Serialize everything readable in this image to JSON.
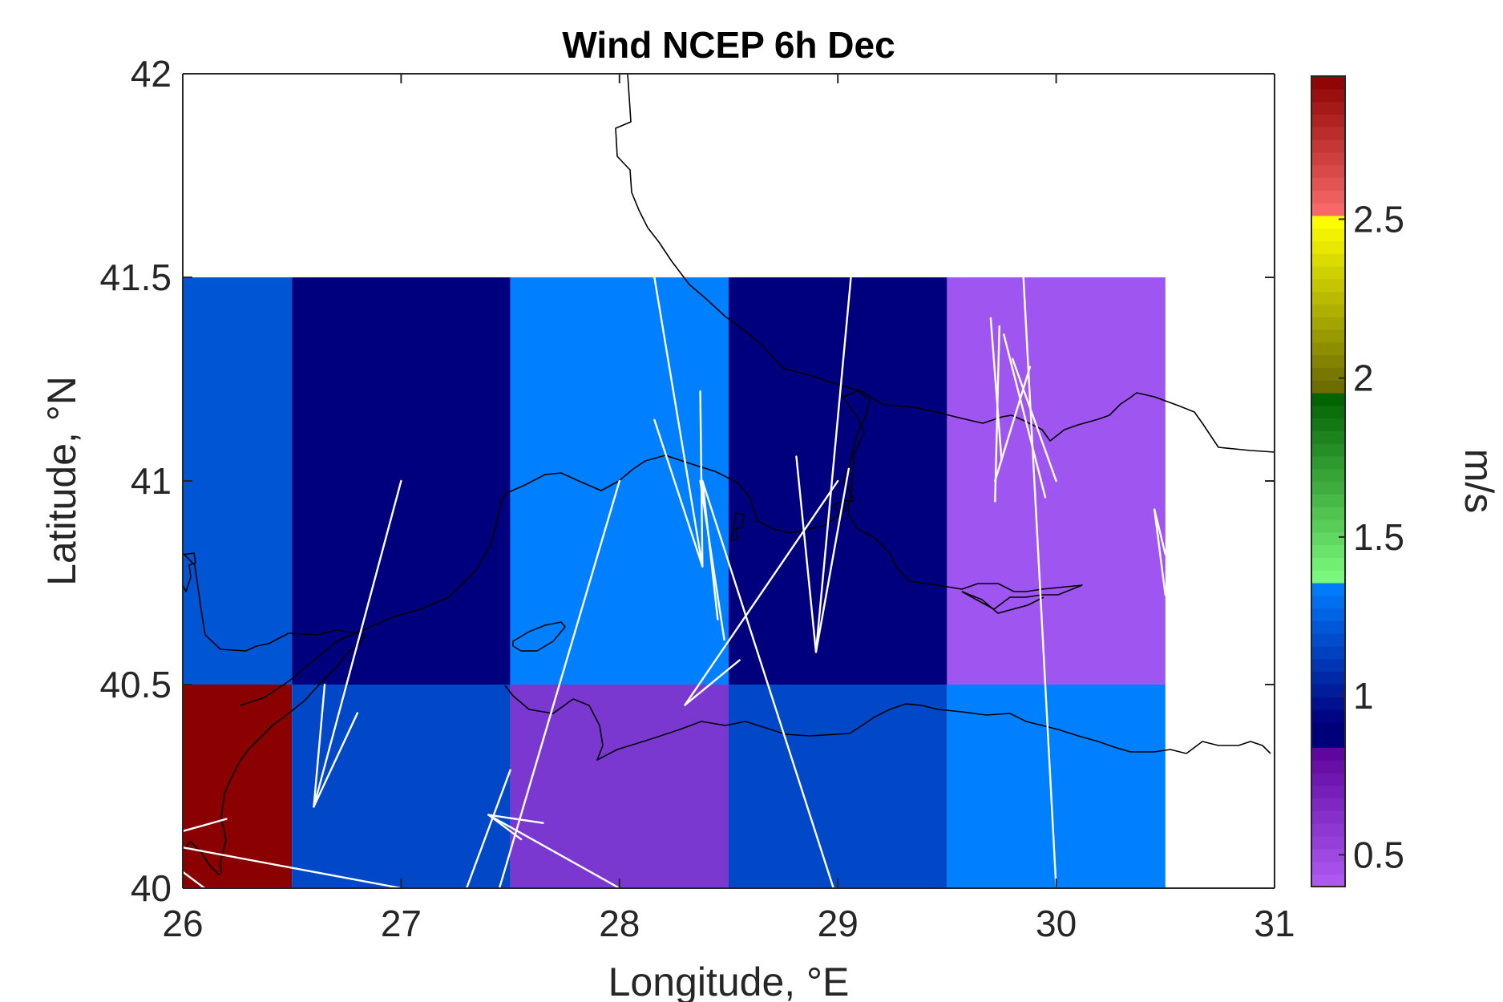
{
  "chart_data": {
    "type": "heatmap",
    "title": "Wind NCEP 6h Dec",
    "xlabel": "Longitude, °E",
    "ylabel": "Latitude, °N",
    "xlim": [
      26,
      31
    ],
    "ylim": [
      40,
      42
    ],
    "xticks": [
      26,
      27,
      28,
      29,
      30,
      31
    ],
    "xtick_labels": [
      "26",
      "27",
      "28",
      "29",
      "30",
      "31"
    ],
    "yticks": [
      40,
      40.5,
      41,
      41.5,
      42
    ],
    "ytick_labels": [
      "40",
      "40.5",
      "41",
      "41.5",
      "42"
    ],
    "grid": false,
    "colorbar": {
      "label": "m/s",
      "range": [
        0.4,
        2.95
      ],
      "ticks": [
        0.5,
        1,
        1.5,
        2,
        2.5
      ],
      "tick_labels": [
        "0.5",
        "1",
        "1.5",
        "2",
        "2.5"
      ],
      "stops": [
        {
          "from": 0.4,
          "to": 0.85,
          "c0": "#b05cf5",
          "c1": "#5a009a"
        },
        {
          "from": 0.85,
          "to": 0.92,
          "c0": "#00007a",
          "c1": "#00007a"
        },
        {
          "from": 0.92,
          "to": 1.35,
          "c0": "#00007f",
          "c1": "#0080ff"
        },
        {
          "from": 1.35,
          "to": 1.95,
          "c0": "#80ff80",
          "c1": "#006000"
        },
        {
          "from": 1.95,
          "to": 2.5,
          "c0": "#666600",
          "c1": "#ffff00"
        },
        {
          "from": 2.5,
          "to": 2.95,
          "c0": "#ff7070",
          "c1": "#8b0000"
        }
      ]
    },
    "cells": [
      {
        "lon": [
          26,
          26.5
        ],
        "lat": [
          40.5,
          41.5
        ],
        "color": "#0055d4"
      },
      {
        "lon": [
          26.5,
          27.5
        ],
        "lat": [
          40.5,
          41.5
        ],
        "color": "#00007f"
      },
      {
        "lon": [
          27.5,
          28.5
        ],
        "lat": [
          40.5,
          41.5
        ],
        "color": "#0080ff"
      },
      {
        "lon": [
          28.5,
          29.5
        ],
        "lat": [
          40.5,
          41.5
        ],
        "color": "#00007f"
      },
      {
        "lon": [
          29.5,
          30.5
        ],
        "lat": [
          40.5,
          41.5
        ],
        "color": "#9f55f0"
      },
      {
        "lon": [
          26,
          26.5
        ],
        "lat": [
          40,
          40.5
        ],
        "color": "#8b0000"
      },
      {
        "lon": [
          26.5,
          27.5
        ],
        "lat": [
          40,
          40.5
        ],
        "color": "#0048c8"
      },
      {
        "lon": [
          27.5,
          28.5
        ],
        "lat": [
          40,
          40.5
        ],
        "color": "#7b38d0"
      },
      {
        "lon": [
          28.5,
          29.5
        ],
        "lat": [
          40,
          40.5
        ],
        "color": "#0048c8"
      },
      {
        "lon": [
          29.5,
          30.5
        ],
        "lat": [
          40,
          40.5
        ],
        "color": "#0080ff"
      }
    ],
    "wind_vectors": [
      [
        27.0,
        41.0,
        26.6,
        40.2
      ],
      [
        26.65,
        40.5,
        26.6,
        40.2
      ],
      [
        26.8,
        40.43,
        26.6,
        40.2
      ],
      [
        26.2,
        40.17,
        26.0,
        40.14
      ],
      [
        26.0,
        40.1,
        27.0,
        40.0
      ],
      [
        26.0,
        40.04,
        26.1,
        40.0
      ],
      [
        27.5,
        40.29,
        27.3,
        40.0
      ],
      [
        28.0,
        41.0,
        27.45,
        40.0
      ],
      [
        27.55,
        40.12,
        27.4,
        40.18
      ],
      [
        28.0,
        40.0,
        27.4,
        40.18
      ],
      [
        27.65,
        40.16,
        27.4,
        40.18
      ],
      [
        28.16,
        41.5,
        28.38,
        40.79
      ],
      [
        28.37,
        41.22,
        28.38,
        40.79
      ],
      [
        28.16,
        41.15,
        28.38,
        40.79
      ],
      [
        28.37,
        41.0,
        28.48,
        40.61
      ],
      [
        28.38,
        41.0,
        28.45,
        40.66
      ],
      [
        28.38,
        41.0,
        28.98,
        40.0
      ],
      [
        29.0,
        41.0,
        28.3,
        40.45
      ],
      [
        28.55,
        40.56,
        28.3,
        40.45
      ],
      [
        29.06,
        41.5,
        28.9,
        40.58
      ],
      [
        28.81,
        41.06,
        28.9,
        40.58
      ],
      [
        29.05,
        41.03,
        28.9,
        40.58
      ],
      [
        29.74,
        41.38,
        29.72,
        40.95
      ],
      [
        29.76,
        41.36,
        29.95,
        40.96
      ],
      [
        29.8,
        41.3,
        30.0,
        41.0
      ],
      [
        29.88,
        41.28,
        29.72,
        41.0
      ],
      [
        29.7,
        41.4,
        29.75,
        41.05
      ],
      [
        29.85,
        41.5,
        30.0,
        40.0
      ],
      [
        30.45,
        40.93,
        30.5,
        40.82
      ],
      [
        30.45,
        40.93,
        30.5,
        40.72
      ]
    ]
  },
  "colors": {
    "coastline": "#000000",
    "wind_vectors": "#ffffff",
    "axis": "#262626",
    "background": "#ffffff"
  }
}
